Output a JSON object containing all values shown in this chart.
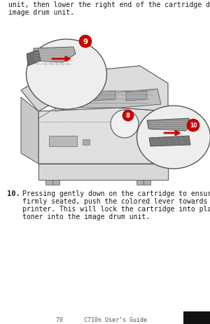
{
  "bg_color": "#ffffff",
  "top_text_line1": "unit, then lower the right end of the cartridge down onto the",
  "top_text_line2": "image drum unit.",
  "step10_bold": "10.",
  "step10_text_line1": "Pressing gently down on the cartridge to ensure that it is",
  "step10_text_line2": "firmly seated, push the colored lever towards the rear of the",
  "step10_text_line3": "printer. This will lock the cartridge into place and release",
  "step10_text_line4": "toner into the image drum unit.",
  "bottom_text": "70      C710n User’s Guide",
  "fig_width": 3.0,
  "fig_height": 4.64,
  "dpi": 100,
  "text_color": "#1a1a1a",
  "red_color": "#cc0000",
  "gray_dark": "#555555",
  "gray_mid": "#888888",
  "gray_light": "#cccccc",
  "gray_lighter": "#e8e8e8",
  "font_size_body": 7.0,
  "font_size_step": 7.5
}
